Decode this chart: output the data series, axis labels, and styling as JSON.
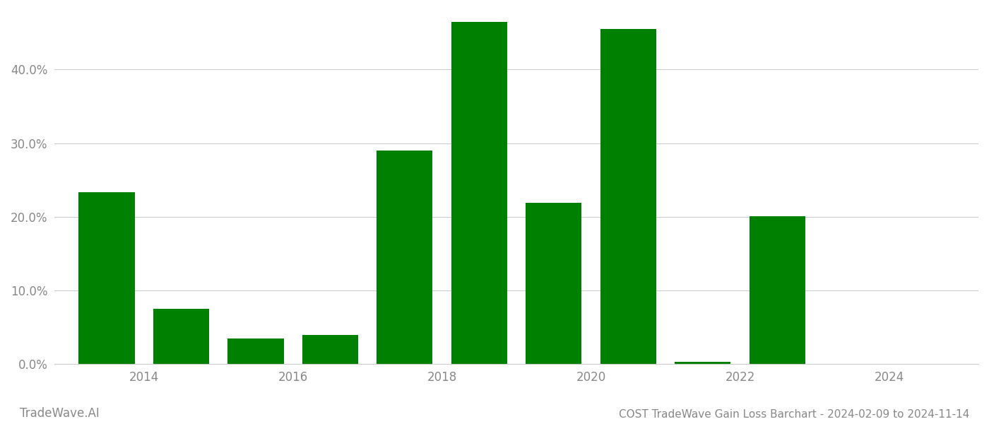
{
  "bar_positions": [
    2013.5,
    2014.5,
    2015.5,
    2016.5,
    2017.5,
    2018.5,
    2019.5,
    2020.5,
    2021.5,
    2022.5
  ],
  "values": [
    0.233,
    0.075,
    0.035,
    0.04,
    0.29,
    0.465,
    0.219,
    0.455,
    0.003,
    0.201
  ],
  "bar_color": "#008000",
  "background_color": "#ffffff",
  "grid_color": "#cccccc",
  "axis_label_color": "#888888",
  "title": "COST TradeWave Gain Loss Barchart - 2024-02-09 to 2024-11-14",
  "watermark": "TradeWave.AI",
  "ylim": [
    0,
    0.48
  ],
  "ytick_vals": [
    0.0,
    0.1,
    0.2,
    0.3,
    0.4
  ],
  "bar_width": 0.75,
  "title_fontsize": 11,
  "tick_fontsize": 12,
  "watermark_fontsize": 12,
  "xlim": [
    2012.8,
    2025.2
  ],
  "xticks": [
    2014,
    2016,
    2018,
    2020,
    2022,
    2024
  ]
}
